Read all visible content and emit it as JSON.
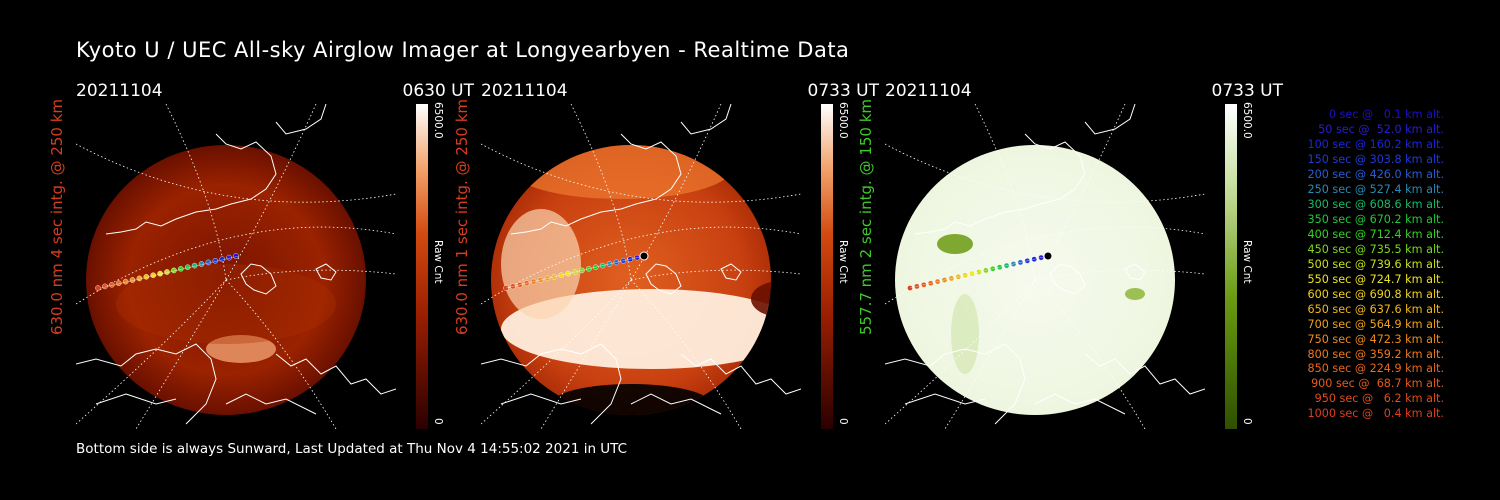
{
  "page": {
    "title": "Kyoto U / UEC All-sky Airglow Imager at Longyearbyen - Realtime Data",
    "footer": "Bottom side is always Sunward, Last Updated at Thu Nov  4 14:55:02 2021 in UTC"
  },
  "panels": [
    {
      "date": "20211104",
      "time": "0630 UT",
      "side_label": "630.0 nm 4 sec intg. @ 250 km",
      "side_color": "#d83c1e",
      "colorbar_max": "6500.0",
      "colorbar_min": "0",
      "colorbar_label": "Raw Cnt",
      "theme": "red-dim"
    },
    {
      "date": "20211104",
      "time": "0733 UT",
      "side_label": "630.0 nm 1 sec intg. @ 250 km",
      "side_color": "#d83c1e",
      "colorbar_max": "6500.0",
      "colorbar_min": "0",
      "colorbar_label": "Raw Cnt",
      "theme": "red-bright"
    },
    {
      "date": "20211104",
      "time": "0733 UT",
      "side_label": "557.7 nm 2 sec intg. @ 150 km",
      "side_color": "#3fc82a",
      "colorbar_max": "6500.0",
      "colorbar_min": "0",
      "colorbar_label": "Raw Cnt",
      "theme": "green"
    }
  ],
  "colors": {
    "red_ramp": [
      "#3a0000",
      "#8a1600",
      "#c53a00",
      "#ea7d3a",
      "#fbd5b8",
      "#ffffff"
    ],
    "green_ramp": [
      "#2f5000",
      "#5c8a00",
      "#a9c86a",
      "#e9f3d6",
      "#ffffff"
    ]
  },
  "legend": [
    {
      "text": "0 sec @   0.1 km alt.",
      "color": "#1c10c8"
    },
    {
      "text": "50 sec @  52.0 km alt.",
      "color": "#2a1ecf"
    },
    {
      "text": "100 sec @ 160.2 km alt.",
      "color": "#1a26d6"
    },
    {
      "text": "150 sec @ 303.8 km alt.",
      "color": "#1f3ad8"
    },
    {
      "text": "200 sec @ 426.0 km alt.",
      "color": "#2a5cd6"
    },
    {
      "text": "250 sec @ 527.4 km alt.",
      "color": "#2a8ab3"
    },
    {
      "text": "300 sec @ 608.6 km alt.",
      "color": "#1ab86a"
    },
    {
      "text": "350 sec @ 670.2 km alt.",
      "color": "#22c83a"
    },
    {
      "text": "400 sec @ 712.4 km alt.",
      "color": "#36d224"
    },
    {
      "text": "450 sec @ 735.5 km alt.",
      "color": "#7ad81c"
    },
    {
      "text": "500 sec @ 739.6 km alt.",
      "color": "#c8e01a"
    },
    {
      "text": "550 sec @ 724.7 km alt.",
      "color": "#ece41c"
    },
    {
      "text": "600 sec @ 690.8 km alt.",
      "color": "#f2d21a"
    },
    {
      "text": "650 sec @ 637.6 km alt.",
      "color": "#f2b81a"
    },
    {
      "text": "700 sec @ 564.9 km alt.",
      "color": "#f0a21a"
    },
    {
      "text": "750 sec @ 472.3 km alt.",
      "color": "#ee8c1a"
    },
    {
      "text": "800 sec @ 359.2 km alt.",
      "color": "#ec7a1e"
    },
    {
      "text": "850 sec @ 224.9 km alt.",
      "color": "#e8681e"
    },
    {
      "text": "900 sec @  68.7 km alt.",
      "color": "#e45a1e"
    },
    {
      "text": "950 sec @   6.2 km alt.",
      "color": "#e04c1e"
    },
    {
      "text": "1000 sec @   0.4 km alt.",
      "color": "#dc3e1e"
    }
  ]
}
